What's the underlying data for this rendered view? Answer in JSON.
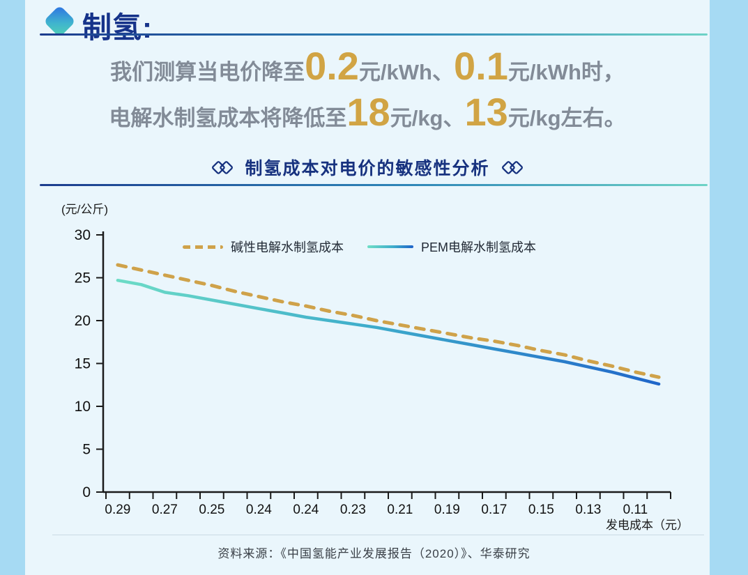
{
  "page": {
    "background": "#EAF6FC",
    "side_strip_color": "#A6DAF3"
  },
  "header": {
    "title": "制氢:",
    "accent_navy": "#16338A",
    "diamond_gradient": [
      "#2F7BE0",
      "#4FD0B5"
    ]
  },
  "callout": {
    "text_color": "#828B97",
    "highlight_color": "#D1A444",
    "lines": [
      [
        {
          "text": "我们测算当电价降至",
          "highlight": false
        },
        {
          "text": "0.2",
          "highlight": true
        },
        {
          "text": "元/kWh、",
          "highlight": false
        },
        {
          "text": "0.1",
          "highlight": true
        },
        {
          "text": "元/kWh时，",
          "highlight": false
        }
      ],
      [
        {
          "text": "电解水制氢成本将降低至",
          "highlight": false
        },
        {
          "text": "18",
          "highlight": true
        },
        {
          "text": "元/kg、",
          "highlight": false
        },
        {
          "text": "13",
          "highlight": true
        },
        {
          "text": "元/kg左右。",
          "highlight": false
        }
      ]
    ]
  },
  "section": {
    "title": "制氢成本对电价的敏感性分析"
  },
  "chart_data": {
    "type": "line",
    "title": "制氢成本对电价的敏感性分析",
    "ylabel": "(元/公斤)",
    "xlabel": "发电成本（元）",
    "ylim": [
      0,
      30
    ],
    "yticks": [
      0,
      5,
      10,
      15,
      20,
      25,
      30
    ],
    "grid": false,
    "legend_position": "top-inside",
    "x_labels": [
      "0.29",
      "0.27",
      "0.25",
      "0.24",
      "0.24",
      "0.23",
      "0.21",
      "0.19",
      "0.17",
      "0.15",
      "0.13",
      "0.11"
    ],
    "series": [
      {
        "name": "碱性电解水制氢成本",
        "style": "dashed",
        "color": "#CFA24A",
        "values": [
          26.5,
          25.9,
          25.3,
          24.7,
          24.1,
          23.4,
          22.8,
          22.2,
          21.7,
          21.1,
          20.6,
          20.0,
          19.5,
          19.0,
          18.5,
          18.0,
          17.6,
          17.1,
          16.5,
          16.0,
          15.3,
          14.7,
          14.0,
          13.4
        ]
      },
      {
        "name": "PEM电解水制氢成本",
        "style": "solid",
        "gradient": [
          "#6FDEC6",
          "#3FAECB",
          "#1E63C9"
        ],
        "values": [
          24.7,
          24.2,
          23.3,
          22.9,
          22.4,
          21.9,
          21.4,
          20.9,
          20.4,
          20.0,
          19.6,
          19.2,
          18.7,
          18.2,
          17.7,
          17.2,
          16.7,
          16.2,
          15.7,
          15.2,
          14.6,
          14.0,
          13.3,
          12.6
        ]
      }
    ]
  },
  "footer": {
    "source": "资料来源：《中国氢能产业发展报告（2020）》、华泰研究"
  }
}
